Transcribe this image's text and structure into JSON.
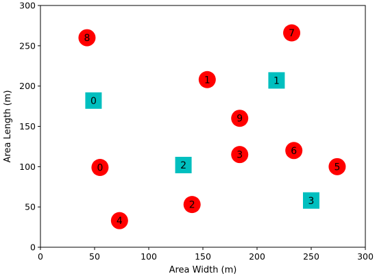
{
  "chart_data": {
    "type": "scatter",
    "xlabel": "Area Width (m)",
    "ylabel": "Area Length (m)",
    "xlim": [
      0,
      300
    ],
    "ylim": [
      0,
      300
    ],
    "x_ticks": [
      0,
      50,
      100,
      150,
      200,
      250,
      300
    ],
    "y_ticks": [
      0,
      50,
      100,
      150,
      200,
      250,
      300
    ],
    "grid": false,
    "series": [
      {
        "marker": "circle",
        "color": "#ff0000",
        "points": [
          {
            "label": "0",
            "x": 55,
            "y": 99
          },
          {
            "label": "1",
            "x": 154,
            "y": 208
          },
          {
            "label": "2",
            "x": 140,
            "y": 53
          },
          {
            "label": "3",
            "x": 184,
            "y": 115
          },
          {
            "label": "4",
            "x": 73,
            "y": 33
          },
          {
            "label": "5",
            "x": 274,
            "y": 100
          },
          {
            "label": "6",
            "x": 234,
            "y": 120
          },
          {
            "label": "7",
            "x": 232,
            "y": 266
          },
          {
            "label": "8",
            "x": 43,
            "y": 260
          },
          {
            "label": "9",
            "x": 184,
            "y": 160
          }
        ]
      },
      {
        "marker": "square",
        "color": "#00bfbf",
        "points": [
          {
            "label": "0",
            "x": 49,
            "y": 182
          },
          {
            "label": "1",
            "x": 218,
            "y": 207
          },
          {
            "label": "2",
            "x": 132,
            "y": 102
          },
          {
            "label": "3",
            "x": 250,
            "y": 58
          }
        ]
      }
    ]
  }
}
